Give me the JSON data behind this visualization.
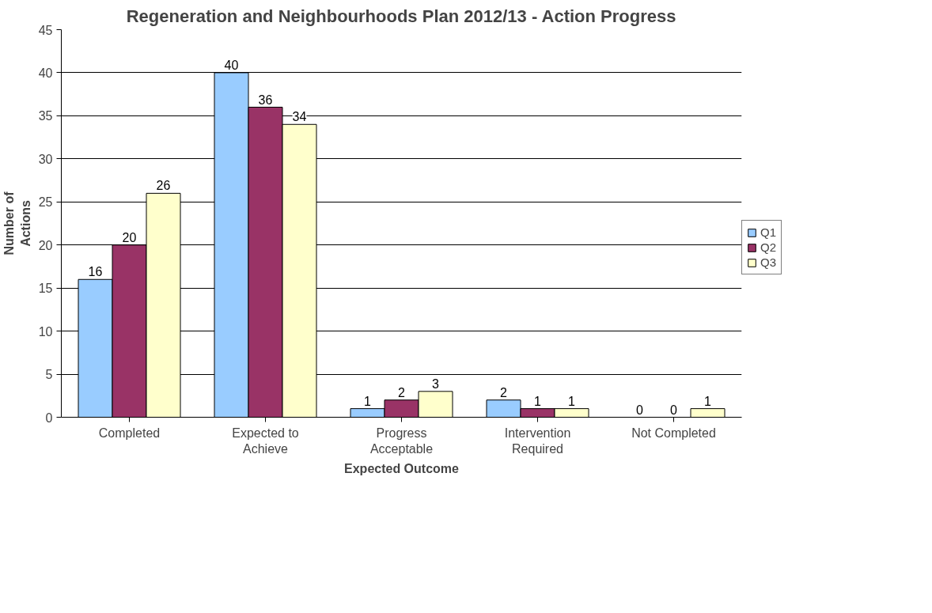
{
  "chart_data": {
    "type": "bar",
    "title": "Regeneration and Neighbourhoods Plan 2012/13 - Action Progress",
    "xlabel": "Expected Outcome",
    "ylabel": "Number of Actions",
    "categories": [
      "Completed",
      "Expected to Achieve",
      "Progress Acceptable",
      "Intervention Required",
      "Not Completed"
    ],
    "series": [
      {
        "name": "Q1",
        "color": "#99ccff",
        "values": [
          16,
          40,
          1,
          2,
          0
        ]
      },
      {
        "name": "Q2",
        "color": "#993366",
        "values": [
          20,
          36,
          2,
          1,
          0
        ]
      },
      {
        "name": "Q3",
        "color": "#ffffcc",
        "values": [
          26,
          34,
          3,
          1,
          1
        ]
      }
    ],
    "ylim": [
      0,
      45
    ],
    "yticks": [
      0,
      5,
      10,
      15,
      20,
      25,
      30,
      35,
      40,
      45
    ],
    "grid": "y",
    "legend": "right",
    "data_labels": true
  }
}
